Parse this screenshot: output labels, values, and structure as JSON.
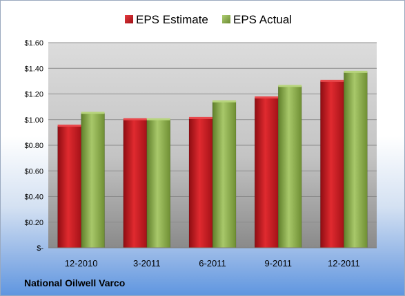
{
  "chart_data": {
    "type": "bar",
    "title": "",
    "xlabel": "",
    "ylabel": "",
    "categories": [
      "12-2010",
      "3-2011",
      "6-2011",
      "9-2011",
      "12-2011"
    ],
    "series": [
      {
        "name": "EPS Estimate",
        "values": [
          0.95,
          1.0,
          1.01,
          1.17,
          1.3
        ],
        "color": "#c8161d"
      },
      {
        "name": "EPS Actual",
        "values": [
          1.05,
          1.0,
          1.14,
          1.26,
          1.37
        ],
        "color": "#8db04a"
      }
    ],
    "ylim": [
      0,
      1.6
    ],
    "yticks": [
      0,
      0.2,
      0.4,
      0.6,
      0.8,
      1.0,
      1.2,
      1.4,
      1.6
    ],
    "ytick_labels": [
      "$-",
      "$0.20",
      "$0.40",
      "$0.60",
      "$0.80",
      "$1.00",
      "$1.20",
      "$1.40",
      "$1.60"
    ],
    "grid": true,
    "legend_position": "top-center"
  },
  "footer": {
    "company": "National Oilwell Varco"
  }
}
